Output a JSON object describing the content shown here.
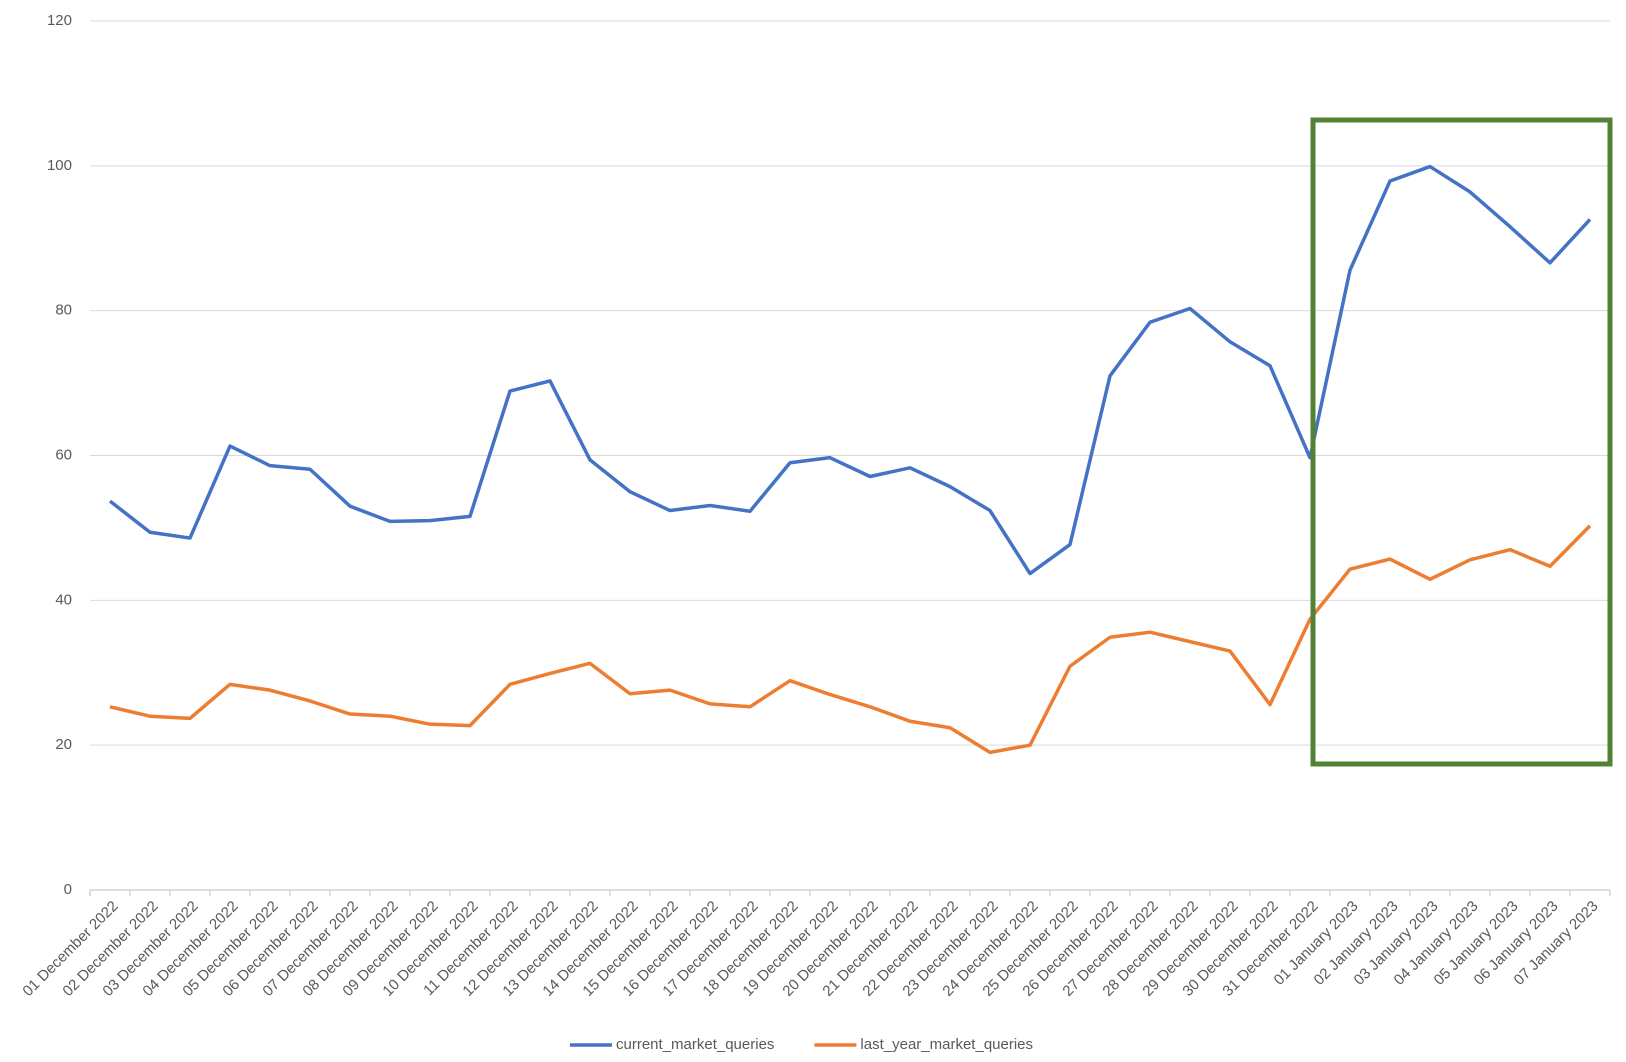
{
  "chart_data": {
    "type": "line",
    "categories": [
      "01 December 2022",
      "02 December 2022",
      "03 December 2022",
      "04 December 2022",
      "05 December 2022",
      "06 December 2022",
      "07 December 2022",
      "08 December 2022",
      "09 December 2022",
      "10 December 2022",
      "11 December 2022",
      "12 December 2022",
      "13 December 2022",
      "14 December 2022",
      "15 December 2022",
      "16 December 2022",
      "17 December 2022",
      "18 December 2022",
      "19 December 2022",
      "20 December 2022",
      "21 December 2022",
      "22 December 2022",
      "23 December 2022",
      "24 December 2022",
      "25 December 2022",
      "26 December 2022",
      "27 December 2022",
      "28 December 2022",
      "29 December 2022",
      "30 December 2022",
      "31 December 2022",
      "01 January 2023",
      "02 January 2023",
      "03 January 2023",
      "04 January 2023",
      "05 January 2023",
      "06 January 2023",
      "07 January 2023"
    ],
    "series": [
      {
        "name": "current_market_queries",
        "color": "#4472c4",
        "values": [
          53.7,
          49.4,
          48.6,
          61.3,
          58.6,
          58.1,
          53,
          50.9,
          51,
          51.6,
          68.9,
          70.3,
          59.4,
          55,
          52.4,
          53.1,
          52.3,
          59,
          59.7,
          57.1,
          58.3,
          55.7,
          52.4,
          43.7,
          47.7,
          71,
          78.4,
          80.3,
          75.7,
          72.4,
          59.7,
          85.6,
          97.9,
          99.9,
          96.4,
          91.6,
          86.6,
          92.6
        ]
      },
      {
        "name": "last_year_market_queries",
        "color": "#ed7d31",
        "values": [
          25.3,
          24,
          23.7,
          28.4,
          27.6,
          26.1,
          24.3,
          24,
          22.9,
          22.7,
          28.4,
          29.9,
          31.3,
          27.1,
          27.6,
          25.7,
          25.3,
          28.9,
          27,
          25.3,
          23.3,
          22.4,
          19,
          20,
          30.9,
          34.9,
          35.6,
          34.3,
          33,
          25.6,
          37.4,
          44.3,
          45.7,
          42.9,
          45.6,
          47,
          44.7,
          50.3
        ]
      }
    ],
    "ylim": [
      0,
      120
    ],
    "yticks": [
      0,
      20,
      40,
      60,
      80,
      100,
      120
    ],
    "grid": true,
    "legend": "bottom"
  }
}
